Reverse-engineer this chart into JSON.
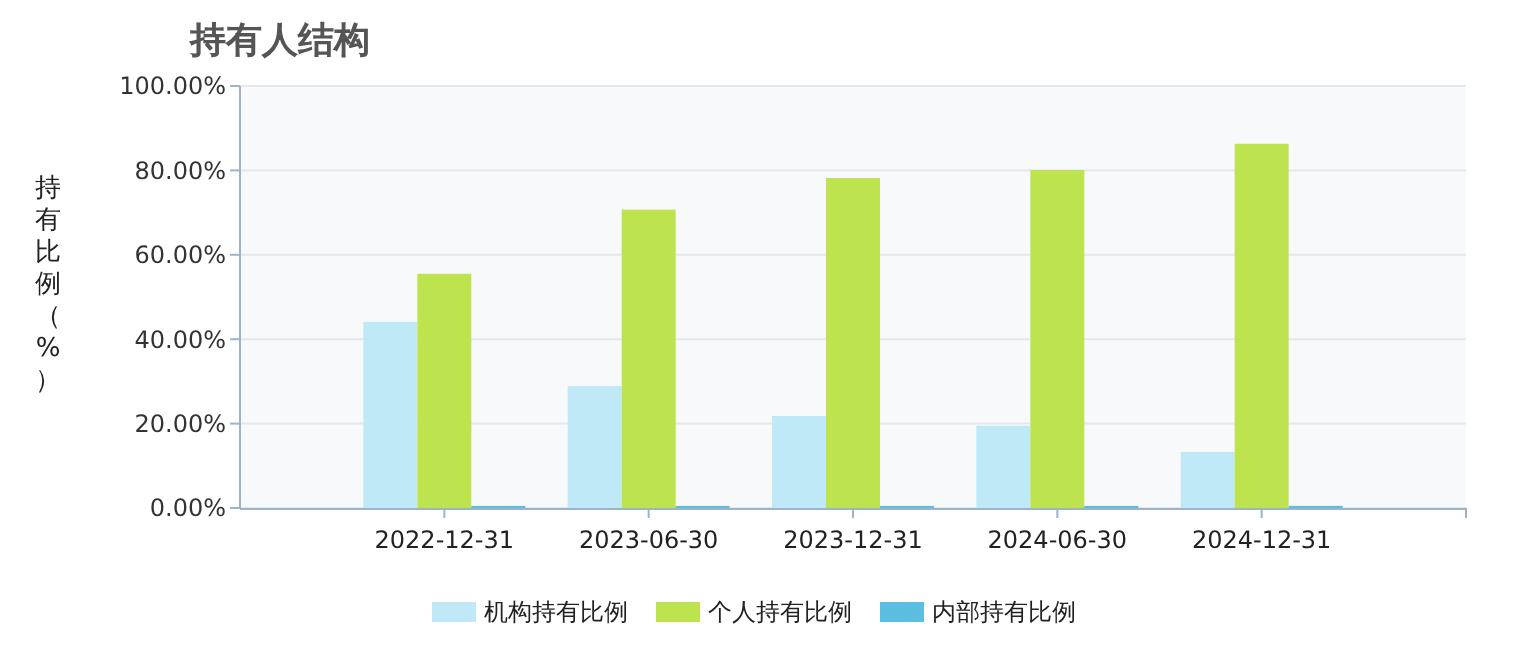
{
  "chart_data": {
    "type": "bar",
    "title": "持有人结构",
    "ylabel": "持有比例（%）",
    "categories": [
      "2022-12-31",
      "2023-06-30",
      "2023-12-31",
      "2024-06-30",
      "2024-12-31"
    ],
    "series": [
      {
        "name": "机构持有比例",
        "color": "#bfe9f6",
        "values": [
          44.1,
          28.9,
          21.8,
          19.5,
          13.3
        ]
      },
      {
        "name": "个人持有比例",
        "color": "#bde44e",
        "values": [
          55.5,
          70.7,
          78.2,
          80.1,
          86.3
        ]
      },
      {
        "name": "内部持有比例",
        "color": "#5bbde0",
        "values": [
          0.5,
          0.5,
          0.5,
          0.5,
          0.5
        ]
      }
    ],
    "ylim": [
      0,
      100
    ],
    "yticks": [
      {
        "value": 0,
        "label": "0.00%"
      },
      {
        "value": 20,
        "label": "20.00%"
      },
      {
        "value": 40,
        "label": "40.00%"
      },
      {
        "value": 60,
        "label": "60.00%"
      },
      {
        "value": 80,
        "label": "80.00%"
      },
      {
        "value": 100,
        "label": "100.00%"
      }
    ],
    "grid": "y",
    "legend": "bottom"
  }
}
